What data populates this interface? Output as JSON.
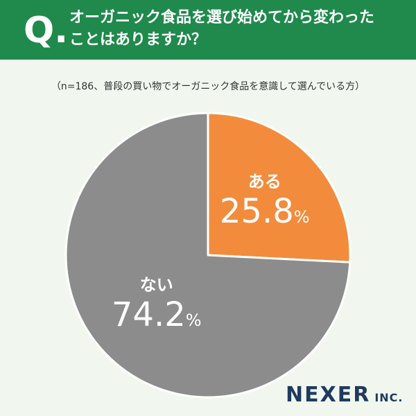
{
  "header": {
    "q_mark": "Q.",
    "question_line1": "オーガニック食品を選び始めてから変わった",
    "question_line2": "ことはありますか？"
  },
  "note": "（n=186、普段の買い物でオーガニック食品を意識して選んでいる方）",
  "chart_data": {
    "type": "pie",
    "title": "オーガニック食品を選び始めてから変わったことはありますか？",
    "start_angle_deg": 0,
    "direction": "clockwise",
    "slices": [
      {
        "label": "ある",
        "value": 25.8,
        "value_text": "25.8",
        "unit": "%",
        "color": "#f28c3c"
      },
      {
        "label": "ない",
        "value": 74.2,
        "value_text": "74.2",
        "unit": "%",
        "color": "#8c8c8c"
      }
    ]
  },
  "brand": {
    "name": "NEXER",
    "suffix": "INC."
  },
  "colors": {
    "header_bg": "#1f8a4c",
    "background": "#f1f7ee",
    "brand": "#1e3a5f"
  }
}
